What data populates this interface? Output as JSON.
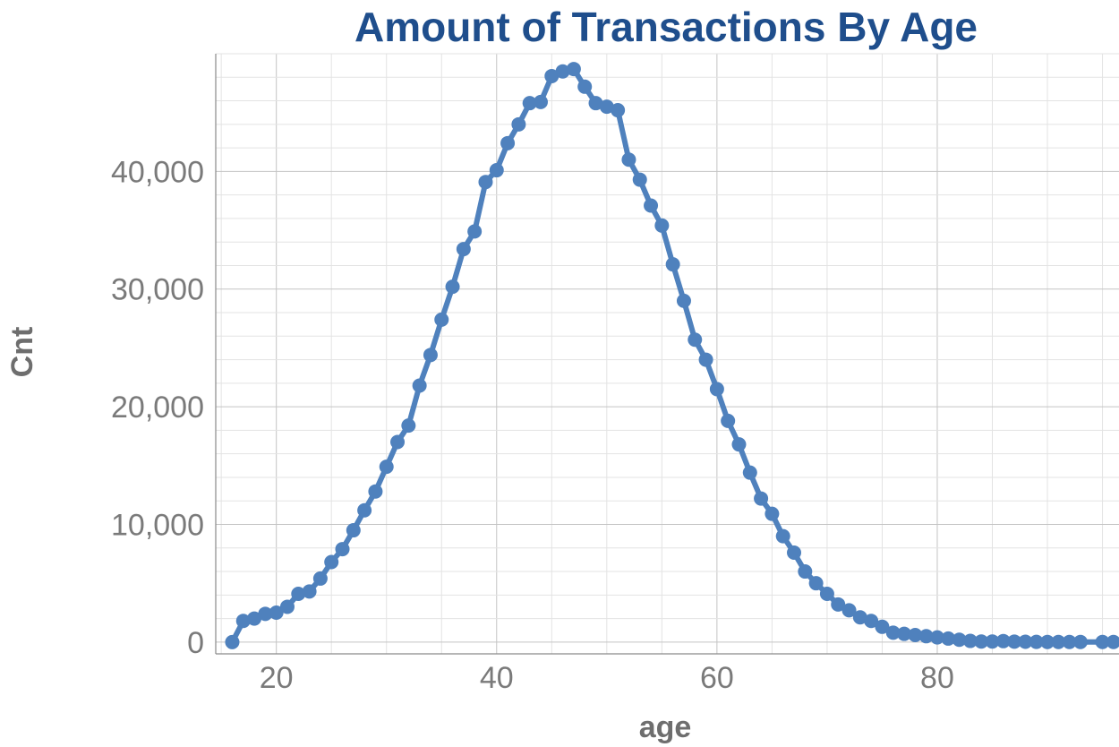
{
  "chart_data": {
    "type": "line",
    "title": "Amount of Transactions By Age",
    "xlabel": "age",
    "ylabel": "Cnt",
    "xlim": [
      14.5,
      96.5
    ],
    "ylim": [
      -1000,
      50000
    ],
    "xticks": [
      20,
      40,
      60,
      80
    ],
    "xtick_labels": [
      "20",
      "40",
      "60",
      "80"
    ],
    "yticks": [
      0,
      10000,
      20000,
      30000,
      40000
    ],
    "ytick_labels": [
      "0",
      "10,000",
      "20,000",
      "30,000",
      "40,000"
    ],
    "grid": true,
    "markers": true,
    "color": "#4f81bd",
    "title_color": "#1f4e8c",
    "x": [
      16,
      17,
      18,
      19,
      20,
      21,
      22,
      23,
      24,
      25,
      26,
      27,
      28,
      29,
      30,
      31,
      32,
      33,
      34,
      35,
      36,
      37,
      38,
      39,
      40,
      41,
      42,
      43,
      44,
      45,
      46,
      47,
      48,
      49,
      50,
      51,
      52,
      53,
      54,
      55,
      56,
      57,
      58,
      59,
      60,
      61,
      62,
      63,
      64,
      65,
      66,
      67,
      68,
      69,
      70,
      71,
      72,
      73,
      74,
      75,
      76,
      77,
      78,
      79,
      80,
      81,
      82,
      83,
      84,
      85,
      86,
      87,
      88,
      89,
      90,
      91,
      92,
      93,
      95,
      96
    ],
    "y": [
      0,
      1800,
      2000,
      2400,
      2500,
      3000,
      4100,
      4300,
      5400,
      6800,
      7900,
      9500,
      11200,
      12800,
      14900,
      17000,
      18400,
      21800,
      24400,
      27400,
      30200,
      33400,
      34900,
      39100,
      40100,
      42400,
      44000,
      45800,
      45900,
      48100,
      48500,
      48700,
      47200,
      45800,
      45500,
      45200,
      41000,
      39300,
      37100,
      35400,
      32100,
      29000,
      25700,
      24000,
      21500,
      18800,
      16800,
      14400,
      12200,
      10900,
      9000,
      7600,
      6000,
      5000,
      4100,
      3200,
      2700,
      2100,
      1800,
      1300,
      800,
      700,
      600,
      500,
      400,
      300,
      200,
      100,
      50,
      50,
      80,
      40,
      30,
      20,
      10,
      10,
      10,
      10,
      10,
      10
    ]
  }
}
